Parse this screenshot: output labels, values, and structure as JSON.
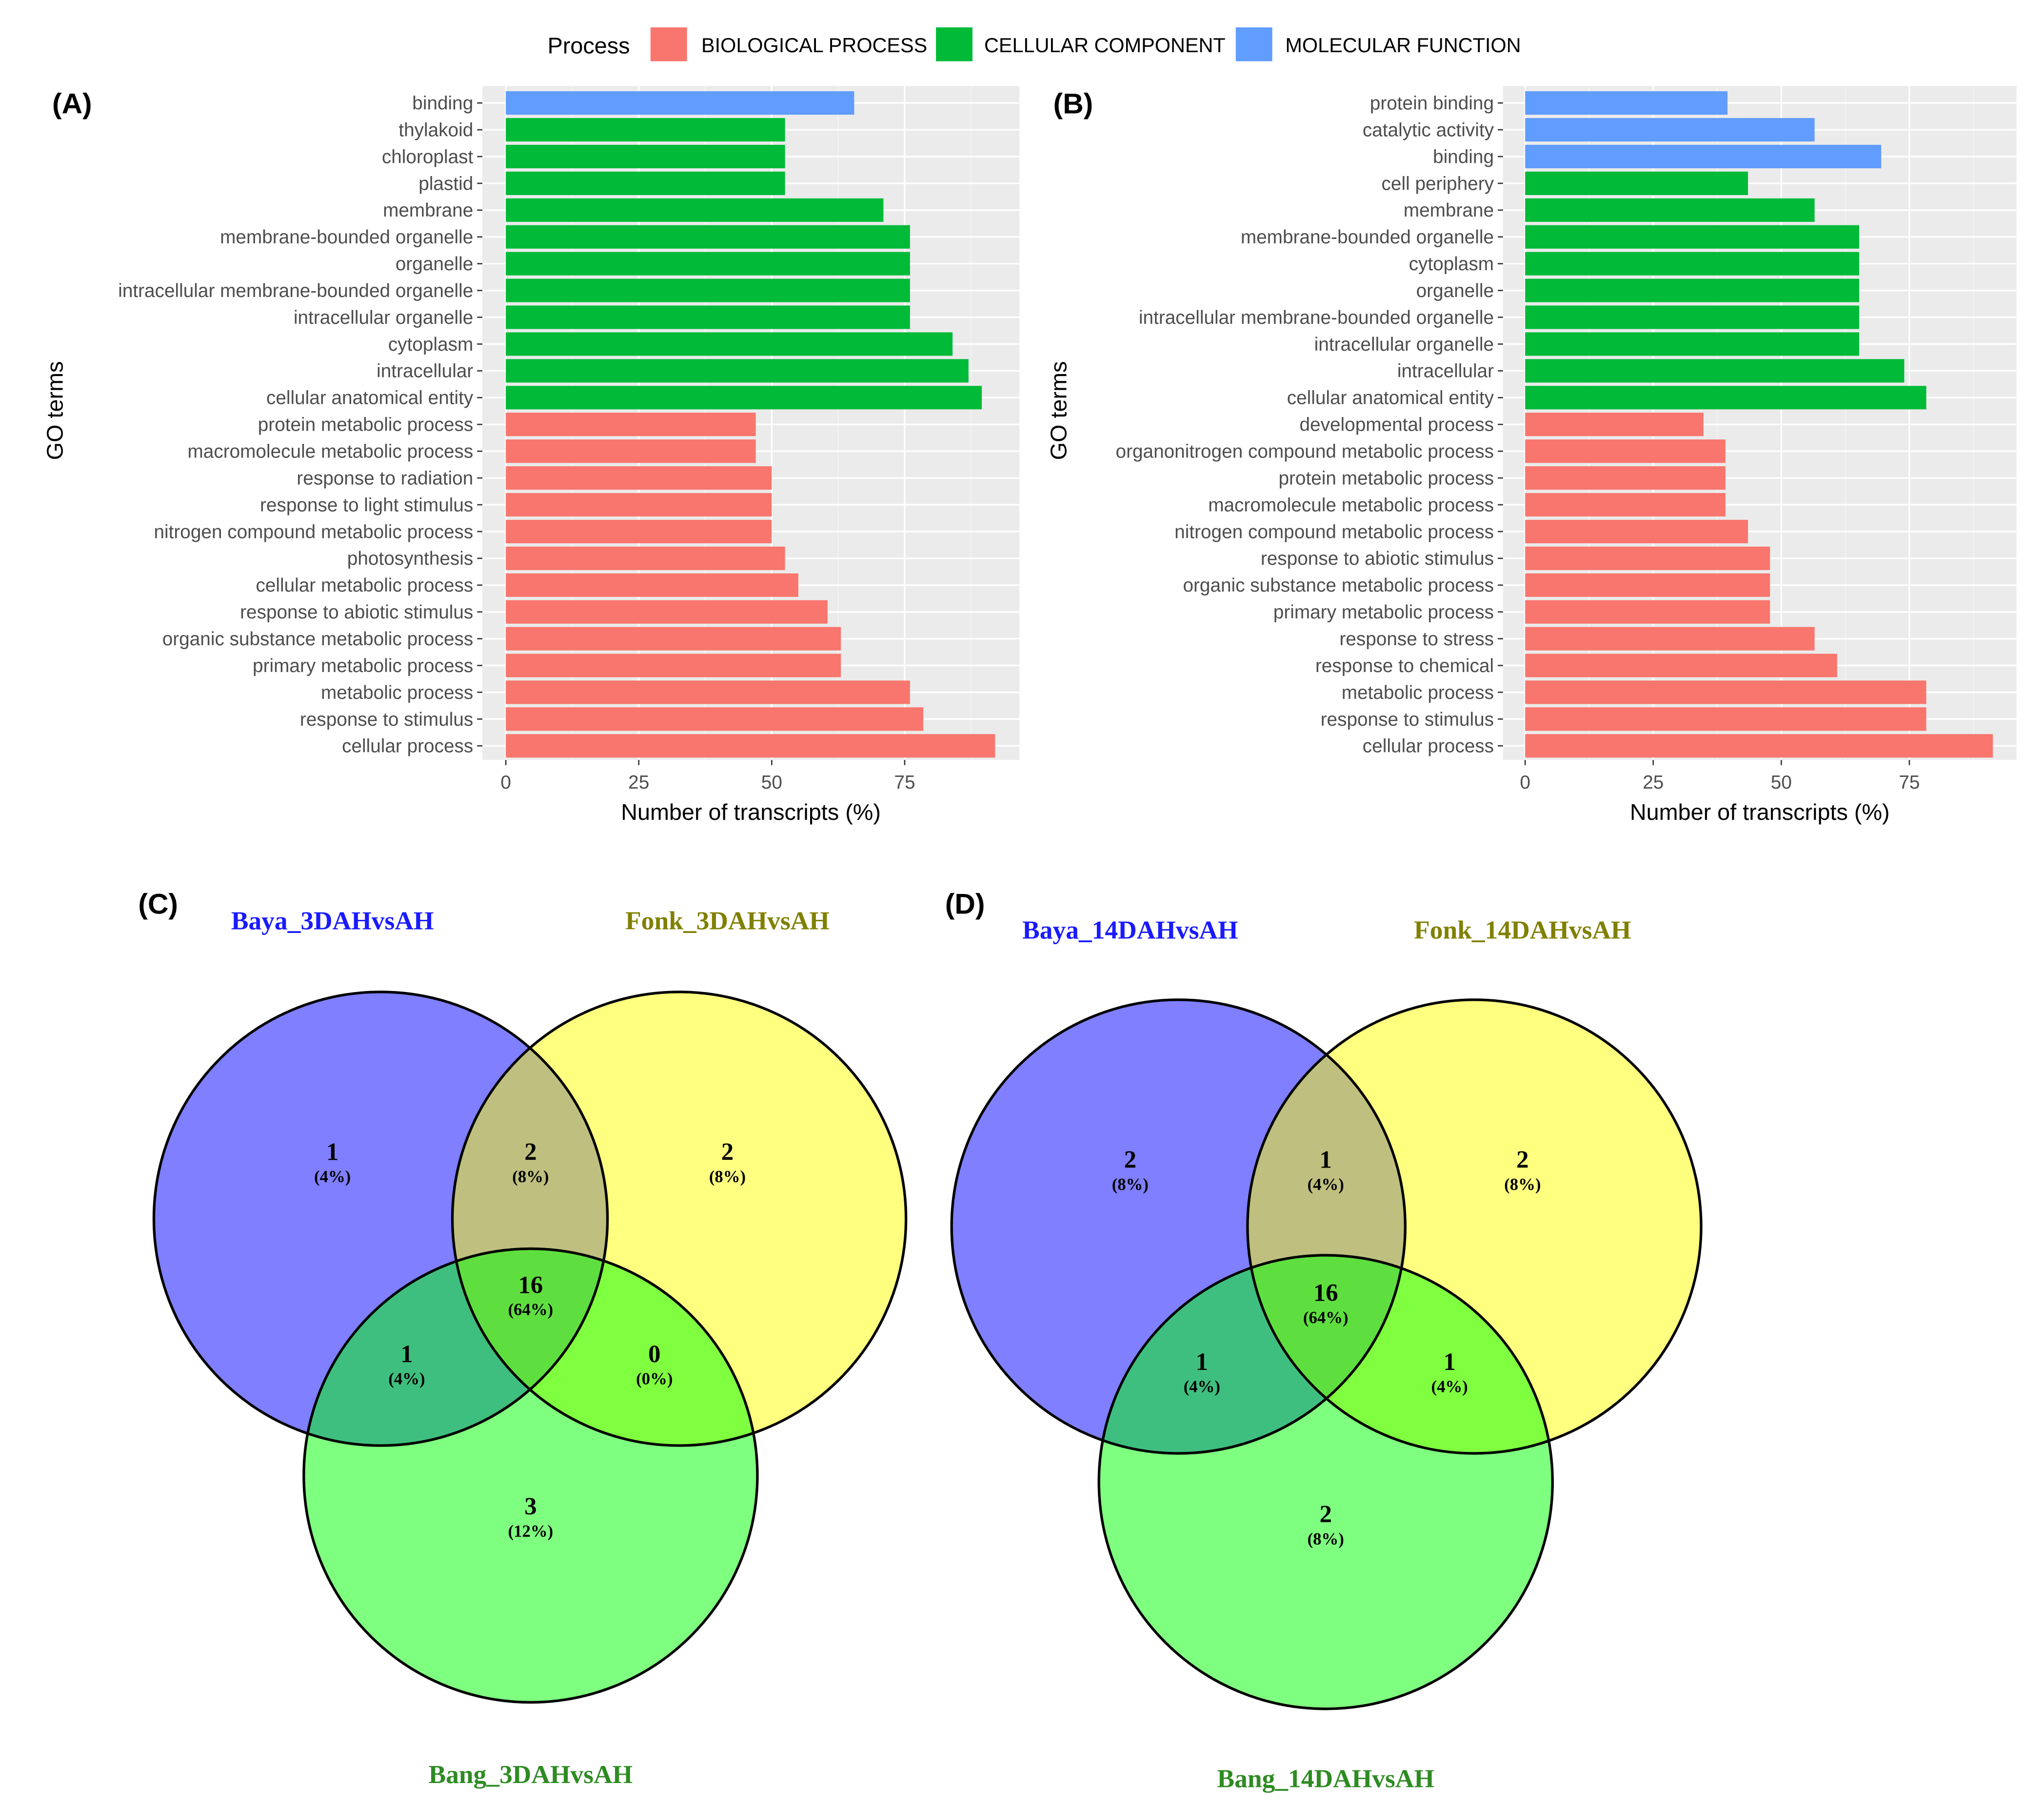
{
  "legend": {
    "title": "Process",
    "items": [
      {
        "label": "BIOLOGICAL PROCESS",
        "color": "#F8766D"
      },
      {
        "label": "CELLULAR COMPONENT",
        "color": "#00BA38"
      },
      {
        "label": "MOLECULAR FUNCTION",
        "color": "#619CFF"
      }
    ]
  },
  "chart_data": [
    {
      "panel": "(A)",
      "type": "bar",
      "orientation": "horizontal",
      "xlabel": "Number of transcripts (%)",
      "ylabel": "GO terms",
      "xlim": [
        0,
        96
      ],
      "xticks": [
        "0",
        "25",
        "50",
        "75"
      ],
      "grid": true,
      "bars": [
        {
          "term": "binding",
          "value": 65.5,
          "category": 2
        },
        {
          "term": "thylakoid",
          "value": 52.5,
          "category": 1
        },
        {
          "term": "chloroplast",
          "value": 52.5,
          "category": 1
        },
        {
          "term": "plastid",
          "value": 52.5,
          "category": 1
        },
        {
          "term": "membrane",
          "value": 71,
          "category": 1
        },
        {
          "term": "membrane-bounded organelle",
          "value": 76,
          "category": 1
        },
        {
          "term": "organelle",
          "value": 76,
          "category": 1
        },
        {
          "term": "intracellular membrane-bounded organelle",
          "value": 76,
          "category": 1
        },
        {
          "term": "intracellular organelle",
          "value": 76,
          "category": 1
        },
        {
          "term": "cytoplasm",
          "value": 84,
          "category": 1
        },
        {
          "term": "intracellular",
          "value": 87,
          "category": 1
        },
        {
          "term": "cellular anatomical entity",
          "value": 89.5,
          "category": 1
        },
        {
          "term": "protein metabolic process",
          "value": 47,
          "category": 0
        },
        {
          "term": "macromolecule metabolic process",
          "value": 47,
          "category": 0
        },
        {
          "term": "response to radiation",
          "value": 50,
          "category": 0
        },
        {
          "term": "response to light stimulus",
          "value": 50,
          "category": 0
        },
        {
          "term": "nitrogen compound metabolic process",
          "value": 50,
          "category": 0
        },
        {
          "term": "photosynthesis",
          "value": 52.5,
          "category": 0
        },
        {
          "term": "cellular metabolic process",
          "value": 55,
          "category": 0
        },
        {
          "term": "response to abiotic stimulus",
          "value": 60.5,
          "category": 0
        },
        {
          "term": "organic substance metabolic process",
          "value": 63,
          "category": 0
        },
        {
          "term": "primary metabolic process",
          "value": 63,
          "category": 0
        },
        {
          "term": "metabolic process",
          "value": 76,
          "category": 0
        },
        {
          "term": "response to stimulus",
          "value": 78.5,
          "category": 0
        },
        {
          "term": "cellular process",
          "value": 92,
          "category": 0
        }
      ]
    },
    {
      "panel": "(B)",
      "type": "bar",
      "orientation": "horizontal",
      "xlabel": "Number of transcripts (%)",
      "ylabel": "GO terms",
      "xlim": [
        0,
        96
      ],
      "xticks": [
        "0",
        "25",
        "50",
        "75"
      ],
      "grid": true,
      "bars": [
        {
          "term": "protein binding",
          "value": 39.5,
          "category": 2
        },
        {
          "term": "catalytic activity",
          "value": 56.5,
          "category": 2
        },
        {
          "term": "binding",
          "value": 69.5,
          "category": 2
        },
        {
          "term": "cell periphery",
          "value": 43.5,
          "category": 1
        },
        {
          "term": "membrane",
          "value": 56.5,
          "category": 1
        },
        {
          "term": "membrane-bounded organelle",
          "value": 65.2,
          "category": 1
        },
        {
          "term": "cytoplasm",
          "value": 65.2,
          "category": 1
        },
        {
          "term": "organelle",
          "value": 65.2,
          "category": 1
        },
        {
          "term": "intracellular membrane-bounded organelle",
          "value": 65.2,
          "category": 1
        },
        {
          "term": "intracellular organelle",
          "value": 65.2,
          "category": 1
        },
        {
          "term": "intracellular",
          "value": 74,
          "category": 1
        },
        {
          "term": "cellular anatomical entity",
          "value": 78.3,
          "category": 1
        },
        {
          "term": "developmental process",
          "value": 34.8,
          "category": 0
        },
        {
          "term": "organonitrogen compound metabolic process",
          "value": 39.1,
          "category": 0
        },
        {
          "term": "protein metabolic process",
          "value": 39.1,
          "category": 0
        },
        {
          "term": "macromolecule metabolic process",
          "value": 39.1,
          "category": 0
        },
        {
          "term": "nitrogen compound metabolic process",
          "value": 43.5,
          "category": 0
        },
        {
          "term": "response to abiotic stimulus",
          "value": 47.8,
          "category": 0
        },
        {
          "term": "organic substance metabolic process",
          "value": 47.8,
          "category": 0
        },
        {
          "term": "primary metabolic process",
          "value": 47.8,
          "category": 0
        },
        {
          "term": "response to stress",
          "value": 56.5,
          "category": 0
        },
        {
          "term": "response to chemical",
          "value": 60.9,
          "category": 0
        },
        {
          "term": "metabolic process",
          "value": 78.3,
          "category": 0
        },
        {
          "term": "response to stimulus",
          "value": 78.3,
          "category": 0
        },
        {
          "term": "cellular process",
          "value": 91.3,
          "category": 0
        }
      ]
    },
    {
      "panel": "(C)",
      "type": "venn",
      "sets": [
        {
          "name": "Baya_3DAHvsAH",
          "color": "#0000FF",
          "label_color": "#1a1aff"
        },
        {
          "name": "Fonk_3DAHvsAH",
          "color": "#FFFF00",
          "label_color": "#808000"
        },
        {
          "name": "Bang_3DAHvsAH",
          "color": "#00FF00",
          "label_color": "#2e8b22"
        }
      ],
      "regions": {
        "A": {
          "count": "1",
          "pct": "(4%)"
        },
        "AB": {
          "count": "2",
          "pct": "(8%)"
        },
        "B": {
          "count": "2",
          "pct": "(8%)"
        },
        "ABC": {
          "count": "16",
          "pct": "(64%)"
        },
        "AC": {
          "count": "1",
          "pct": "(4%)"
        },
        "BC": {
          "count": "0",
          "pct": "(0%)"
        },
        "C": {
          "count": "3",
          "pct": "(12%)"
        }
      }
    },
    {
      "panel": "(D)",
      "type": "venn",
      "sets": [
        {
          "name": "Baya_14DAHvsAH",
          "color": "#0000FF",
          "label_color": "#1a1aff"
        },
        {
          "name": "Fonk_14DAHvsAH",
          "color": "#FFFF00",
          "label_color": "#808000"
        },
        {
          "name": "Bang_14DAHvsAH",
          "color": "#00FF00",
          "label_color": "#2e8b22"
        }
      ],
      "regions": {
        "A": {
          "count": "2",
          "pct": "(8%)"
        },
        "AB": {
          "count": "1",
          "pct": "(4%)"
        },
        "B": {
          "count": "2",
          "pct": "(8%)"
        },
        "ABC": {
          "count": "16",
          "pct": "(64%)"
        },
        "AC": {
          "count": "1",
          "pct": "(4%)"
        },
        "BC": {
          "count": "1",
          "pct": "(4%)"
        },
        "C": {
          "count": "2",
          "pct": "(8%)"
        }
      }
    }
  ]
}
